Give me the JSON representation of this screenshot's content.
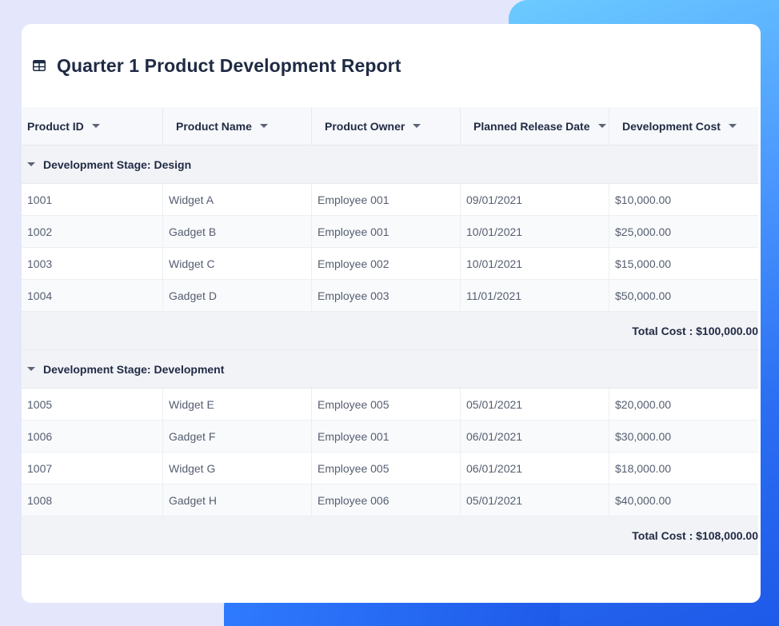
{
  "report": {
    "title": "Quarter 1 Product Development Report",
    "icon": "table-icon"
  },
  "columns": [
    "Product ID",
    "Product Name",
    "Product Owner",
    "Planned Release Date",
    "Development Cost"
  ],
  "groups": [
    {
      "label": "Development Stage: Design",
      "rows": [
        [
          "1001",
          "Widget A",
          "Employee 001",
          "09/01/2021",
          "$10,000.00"
        ],
        [
          "1002",
          "Gadget B",
          "Employee 001",
          "10/01/2021",
          "$25,000.00"
        ],
        [
          "1003",
          "Widget C",
          "Employee 002",
          "10/01/2021",
          "$15,000.00"
        ],
        [
          "1004",
          "Gadget D",
          "Employee 003",
          "11/01/2021",
          "$50,000.00"
        ]
      ],
      "total": "Total Cost : $100,000.00"
    },
    {
      "label": "Development Stage: Development",
      "rows": [
        [
          "1005",
          "Widget E",
          "Employee 005",
          "05/01/2021",
          "$20,000.00"
        ],
        [
          "1006",
          "Gadget F",
          "Employee 001",
          "06/01/2021",
          "$30,000.00"
        ],
        [
          "1007",
          "Widget G",
          "Employee 005",
          "06/01/2021",
          "$18,000.00"
        ],
        [
          "1008",
          "Gadget H",
          "Employee 006",
          "05/01/2021",
          "$40,000.00"
        ]
      ],
      "total": "Total Cost : $108,000.00"
    }
  ]
}
